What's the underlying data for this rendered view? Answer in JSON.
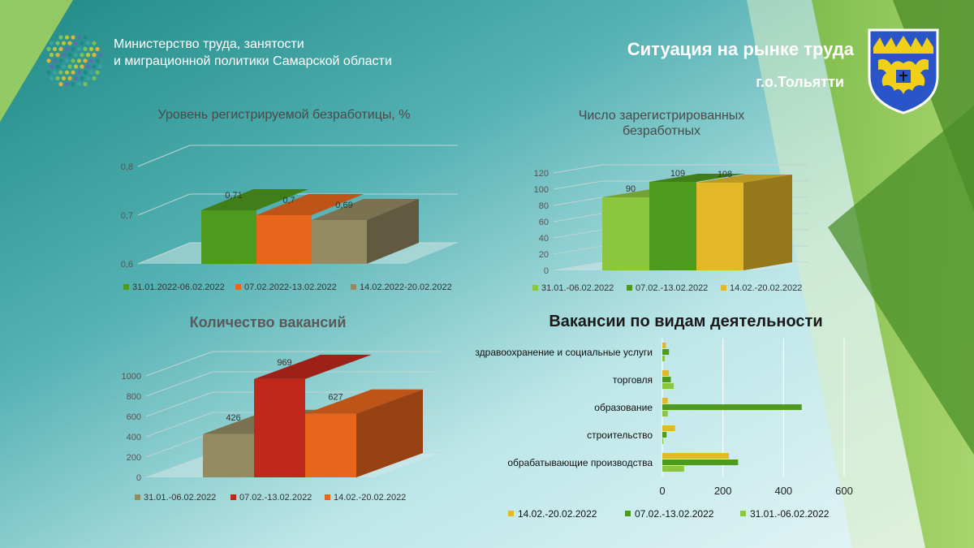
{
  "header": {
    "ministry_line1": "Министерство труда, занятости",
    "ministry_line2": "и миграционной политики  Самарской области",
    "title": "Ситуация на рынке труда",
    "subtitle": "г.о.Тольятти"
  },
  "colors": {
    "green_dark": "#4e9a1f",
    "green_light": "#8cc63f",
    "orange": "#e8661c",
    "olive": "#958b62",
    "yellow": "#e3b92a",
    "red": "#c0281c"
  },
  "chart_data": [
    {
      "id": "unemployment_rate",
      "type": "bar",
      "title": "Уровень регистрируемой  безработицы, %",
      "series": [
        {
          "name": "31.01.2022-06.02.2022",
          "values": [
            0.71
          ],
          "labels": [
            "0,71"
          ],
          "color": "#4e9a1f"
        },
        {
          "name": "07.02.2022-13.02.2022",
          "values": [
            0.7
          ],
          "labels": [
            "0,7"
          ],
          "color": "#e8661c"
        },
        {
          "name": "14.02.2022-20.02.2022",
          "values": [
            0.69
          ],
          "labels": [
            "0,69"
          ],
          "color": "#958b62"
        }
      ],
      "ylim": [
        0.6,
        0.8
      ],
      "yticks": [
        "0,6",
        "0,7",
        "0,8"
      ],
      "ytick_values": [
        0.6,
        0.7,
        0.8
      ],
      "grid": true,
      "legend": "bottom"
    },
    {
      "id": "registered_unemployed",
      "type": "bar",
      "title": "Число зарегистрированных безработных",
      "title_lines": [
        "Число зарегистрированных",
        "безработных"
      ],
      "series": [
        {
          "name": "31.01.-06.02.2022",
          "values": [
            90
          ],
          "labels": [
            "90"
          ],
          "color": "#8cc63f"
        },
        {
          "name": "07.02.-13.02.2022",
          "values": [
            109
          ],
          "labels": [
            "109"
          ],
          "color": "#4e9a1f"
        },
        {
          "name": "14.02.-20.02.2022",
          "values": [
            108
          ],
          "labels": [
            "108"
          ],
          "color": "#e3b92a"
        }
      ],
      "ylim": [
        0,
        120
      ],
      "yticks": [
        "0",
        "20",
        "40",
        "60",
        "80",
        "100",
        "120"
      ],
      "ytick_values": [
        0,
        20,
        40,
        60,
        80,
        100,
        120
      ],
      "grid": true,
      "legend": "bottom"
    },
    {
      "id": "vacancies",
      "type": "bar",
      "title": "Количество вакансий",
      "series": [
        {
          "name": "31.01.-06.02.2022",
          "values": [
            426
          ],
          "labels": [
            "426"
          ],
          "color": "#958b62"
        },
        {
          "name": "07.02.-13.02.2022",
          "values": [
            969
          ],
          "labels": [
            "969"
          ],
          "color": "#c0281c"
        },
        {
          "name": "14.02.-20.02.2022",
          "values": [
            627
          ],
          "labels": [
            "627"
          ],
          "color": "#e8661c"
        }
      ],
      "ylim": [
        0,
        1000
      ],
      "yticks": [
        "0",
        "200",
        "400",
        "600",
        "800",
        "1000"
      ],
      "ytick_values": [
        0,
        200,
        400,
        600,
        800,
        1000
      ],
      "grid": true,
      "legend": "bottom"
    },
    {
      "id": "vacancies_by_activity",
      "type": "bar",
      "orientation": "horizontal",
      "title": "Вакансии по видам деятельности",
      "categories": [
        "здравоохранение и социальные услуги",
        "торговля",
        "образование",
        "строительство",
        "обрабатывающие производства"
      ],
      "series": [
        {
          "name": "14.02.-20.02.2022",
          "values": [
            12,
            22,
            18,
            42,
            220
          ],
          "color": "#e3b92a"
        },
        {
          "name": "07.02.-13.02.2022",
          "values": [
            22,
            28,
            460,
            14,
            250
          ],
          "color": "#4e9a1f"
        },
        {
          "name": "31.01.-06.02.2022",
          "values": [
            8,
            38,
            18,
            3,
            72
          ],
          "color": "#8cc63f"
        }
      ],
      "xlim": [
        0,
        600
      ],
      "xticks": [
        "0",
        "200",
        "400",
        "600"
      ],
      "xtick_values": [
        0,
        200,
        400,
        600
      ],
      "grid": true,
      "legend": "bottom"
    }
  ]
}
